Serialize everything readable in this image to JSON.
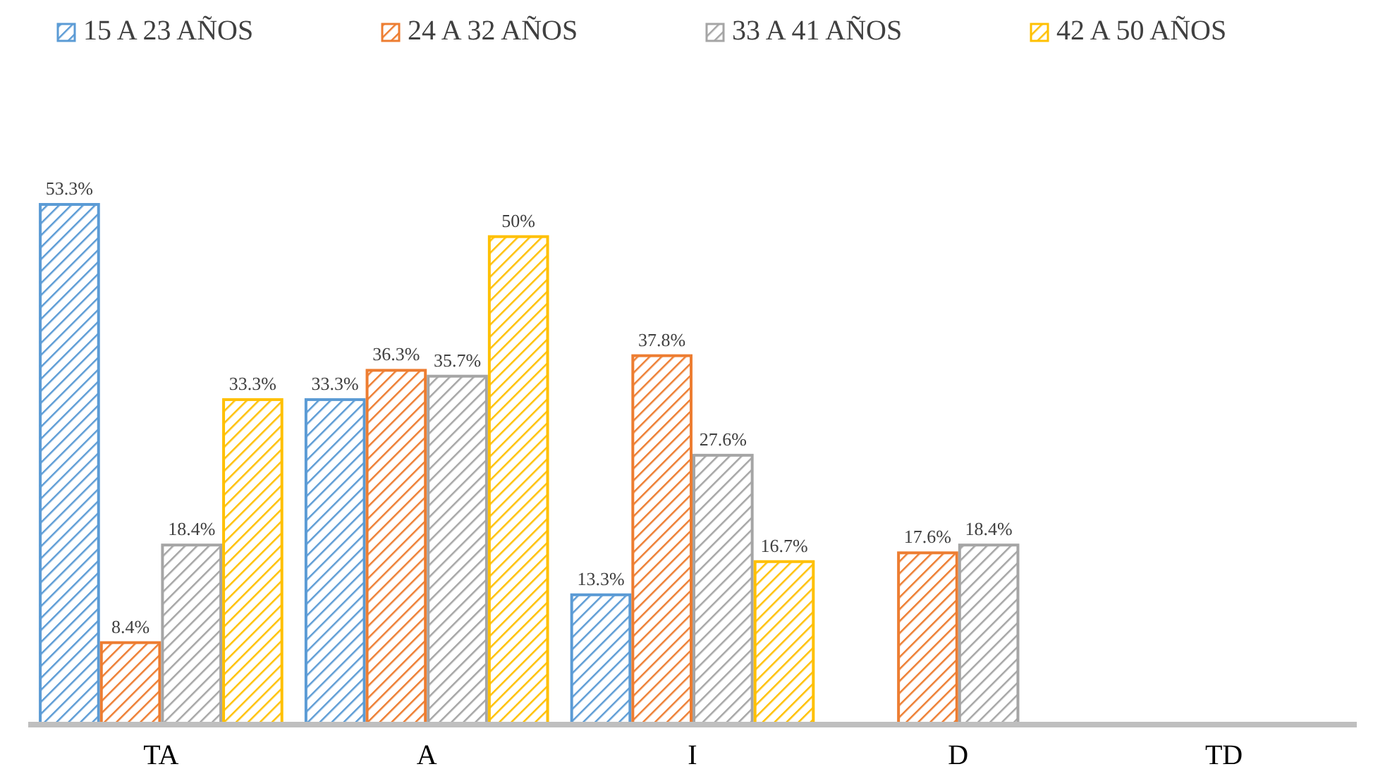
{
  "chart_data": {
    "type": "bar",
    "categories": [
      "TA",
      "A",
      "I",
      "D",
      "TD"
    ],
    "series": [
      {
        "name": "15 A 23 AÑOS",
        "color": "#5b9bd5",
        "values": [
          53.3,
          33.3,
          13.3,
          0,
          0
        ],
        "value_labels": [
          "53.3%",
          "33.3%",
          "13.3%",
          null,
          null
        ]
      },
      {
        "name": "24 A 32 AÑOS",
        "color": "#ed7d31",
        "values": [
          8.4,
          36.3,
          37.8,
          17.6,
          0
        ],
        "value_labels": [
          "8.4%",
          "36.3%",
          "37.8%",
          "17.6%",
          null
        ]
      },
      {
        "name": "33 A 41 AÑOS",
        "color": "#a5a5a5",
        "values": [
          18.4,
          35.7,
          27.6,
          18.4,
          0
        ],
        "value_labels": [
          "18.4%",
          "35.7%",
          "27.6%",
          "18.4%",
          null
        ]
      },
      {
        "name": "42 A 50 AÑOS",
        "color": "#ffc000",
        "values": [
          33.3,
          50,
          16.7,
          0,
          0
        ],
        "value_labels": [
          "33.3%",
          "50%",
          "16.7%",
          null,
          null
        ]
      }
    ],
    "legend": "top"
  }
}
